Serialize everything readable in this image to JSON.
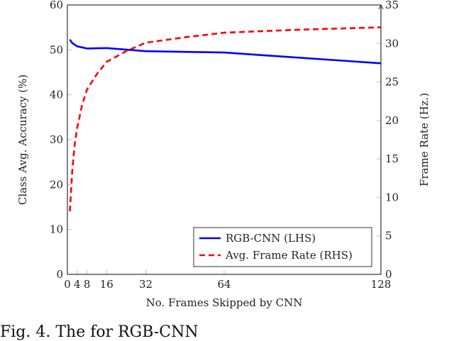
{
  "chart_data": {
    "type": "line",
    "xlabel": "No. Frames Skipped by CNN",
    "ylabel_left": "Class Avg. Accuracy (%)",
    "ylabel_right": "Frame Rate (Hz.)",
    "xlim": [
      0,
      128
    ],
    "ylim_left": [
      0,
      60
    ],
    "ylim_right": [
      0,
      35
    ],
    "x_ticks": [
      0,
      4,
      8,
      16,
      32,
      64,
      128
    ],
    "y_ticks_left": [
      0,
      10,
      20,
      30,
      40,
      50,
      60
    ],
    "y_ticks_right": [
      0,
      5,
      10,
      15,
      20,
      25,
      30,
      35
    ],
    "grid": false,
    "legend_placement": "bottom-right",
    "series": [
      {
        "name": "RGB-CNN (LHS)",
        "axis": "left",
        "color": "#0000ff",
        "style": "solid",
        "x": [
          1,
          2,
          4,
          8,
          16,
          32,
          64,
          128
        ],
        "y": [
          52.3,
          51.5,
          50.8,
          50.3,
          50.4,
          49.7,
          49.4,
          47.0
        ]
      },
      {
        "name": "Avg. Frame Rate (RHS)",
        "axis": "right",
        "color": "#ff0000",
        "style": "dashed",
        "x": [
          1,
          2,
          3,
          4,
          6,
          8,
          12,
          16,
          24,
          32,
          48,
          64,
          96,
          128
        ],
        "y": [
          8.2,
          13.5,
          17,
          19,
          22,
          24,
          26,
          27.6,
          29,
          30.1,
          30.8,
          31.4,
          31.8,
          32.1
        ]
      }
    ]
  },
  "caption": "Fig. 4. The                                    for    RGB-CNN"
}
